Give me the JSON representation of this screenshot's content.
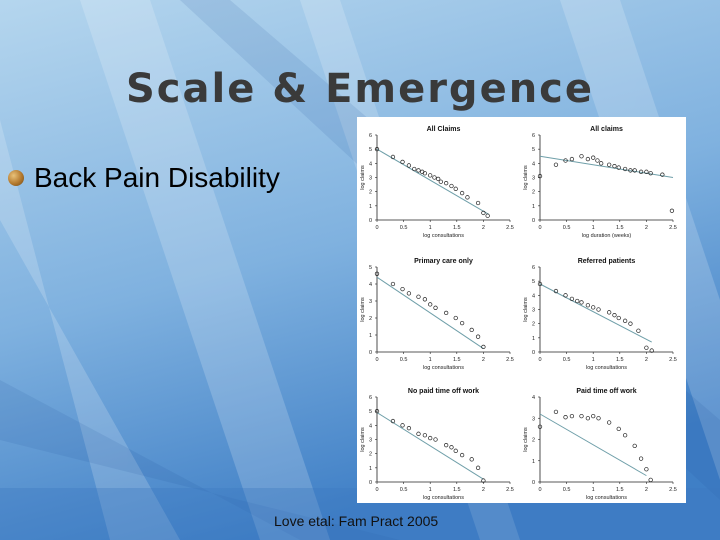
{
  "slide": {
    "title": "Scale & Emergence",
    "bullet": "Back Pain Disability",
    "citation": "Love etal:  Fam Pract  2005"
  },
  "colors": {
    "title": "#3a3a3a",
    "fit_line": "#6f9fa9",
    "background_top": "#a9cde8",
    "background_bottom": "#4a85c8"
  },
  "chart_data": [
    {
      "type": "scatter",
      "title": "All Claims",
      "xlabel": "log consultations",
      "ylabel": "log claims",
      "xlim": [
        0,
        2.5
      ],
      "ylim": [
        0,
        6
      ],
      "xticks": [
        "0",
        "0.5",
        "1",
        "1.5",
        "2",
        "2.5"
      ],
      "yticks": [
        "0",
        "1",
        "2",
        "3",
        "4",
        "5",
        "6"
      ],
      "x": [
        0,
        0.3,
        0.48,
        0.6,
        0.7,
        0.78,
        0.85,
        0.9,
        1.0,
        1.08,
        1.15,
        1.2,
        1.3,
        1.4,
        1.48,
        1.6,
        1.7,
        1.9,
        2.0,
        2.08
      ],
      "y": [
        5.0,
        4.45,
        4.1,
        3.85,
        3.6,
        3.5,
        3.4,
        3.3,
        3.15,
        3.0,
        2.9,
        2.7,
        2.6,
        2.4,
        2.2,
        1.9,
        1.6,
        1.2,
        0.5,
        0.3
      ],
      "fit": [
        [
          0,
          5.0
        ],
        [
          2.1,
          0.4
        ]
      ]
    },
    {
      "type": "scatter",
      "title": "All claims",
      "xlabel": "log duration (weeks)",
      "ylabel": "log claims",
      "xlim": [
        0,
        2.5
      ],
      "ylim": [
        0,
        6
      ],
      "xticks": [
        "0",
        "0.5",
        "1",
        "1.5",
        "2",
        "2.5"
      ],
      "yticks": [
        "0",
        "1",
        "2",
        "3",
        "4",
        "5",
        "6"
      ],
      "x": [
        0,
        0.3,
        0.48,
        0.6,
        0.78,
        0.9,
        1.0,
        1.08,
        1.15,
        1.3,
        1.4,
        1.48,
        1.6,
        1.7,
        1.78,
        1.9,
        2.0,
        2.08,
        2.3,
        2.48
      ],
      "y": [
        3.1,
        3.9,
        4.2,
        4.3,
        4.5,
        4.3,
        4.4,
        4.2,
        4.0,
        3.9,
        3.8,
        3.7,
        3.6,
        3.5,
        3.5,
        3.4,
        3.4,
        3.3,
        3.2,
        0.65
      ],
      "fit": [
        [
          0,
          4.5
        ],
        [
          2.5,
          3.0
        ]
      ]
    },
    {
      "type": "scatter",
      "title": "Primary care only",
      "xlabel": "log consultations",
      "ylabel": "log claims",
      "xlim": [
        0,
        2.5
      ],
      "ylim": [
        0,
        5
      ],
      "xticks": [
        "0",
        "0.5",
        "1",
        "1.5",
        "2",
        "2.5"
      ],
      "yticks": [
        "0",
        "1",
        "2",
        "3",
        "4",
        "5"
      ],
      "x": [
        0,
        0.3,
        0.48,
        0.6,
        0.78,
        0.9,
        1.0,
        1.1,
        1.3,
        1.48,
        1.6,
        1.78,
        1.9,
        2.0
      ],
      "y": [
        4.6,
        4.0,
        3.7,
        3.45,
        3.25,
        3.1,
        2.8,
        2.6,
        2.3,
        2.0,
        1.7,
        1.3,
        0.9,
        0.3
      ],
      "fit": [
        [
          0,
          4.4
        ],
        [
          2.0,
          0.2
        ]
      ]
    },
    {
      "type": "scatter",
      "title": "Referred patients",
      "xlabel": "log consultations",
      "ylabel": "log claims",
      "xlim": [
        0,
        2.5
      ],
      "ylim": [
        0,
        6
      ],
      "xticks": [
        "0",
        "0.5",
        "1",
        "1.5",
        "2",
        "2.5"
      ],
      "yticks": [
        "0",
        "1",
        "2",
        "3",
        "4",
        "5",
        "6"
      ],
      "x": [
        0,
        0.3,
        0.48,
        0.6,
        0.7,
        0.78,
        0.9,
        1.0,
        1.1,
        1.3,
        1.4,
        1.48,
        1.6,
        1.7,
        1.85,
        2.0,
        2.1
      ],
      "y": [
        4.8,
        4.3,
        4.0,
        3.75,
        3.6,
        3.5,
        3.3,
        3.15,
        3.0,
        2.8,
        2.6,
        2.4,
        2.2,
        2.0,
        1.5,
        0.3,
        0.1
      ],
      "fit": [
        [
          0,
          4.8
        ],
        [
          2.1,
          0.7
        ]
      ]
    },
    {
      "type": "scatter",
      "title": "No paid time off work",
      "xlabel": "log consultations",
      "ylabel": "log claims",
      "xlim": [
        0,
        2.5
      ],
      "ylim": [
        0,
        6
      ],
      "xticks": [
        "0",
        "0.5",
        "1",
        "1.5",
        "2",
        "2.5"
      ],
      "yticks": [
        "0",
        "1",
        "2",
        "3",
        "4",
        "5",
        "6"
      ],
      "x": [
        0,
        0.3,
        0.48,
        0.6,
        0.78,
        0.9,
        1.0,
        1.1,
        1.3,
        1.4,
        1.48,
        1.6,
        1.78,
        1.9,
        2.0
      ],
      "y": [
        5.0,
        4.3,
        4.0,
        3.8,
        3.4,
        3.3,
        3.1,
        3.0,
        2.6,
        2.45,
        2.2,
        1.9,
        1.6,
        1.0,
        0.1
      ],
      "fit": [
        [
          0,
          4.9
        ],
        [
          2.0,
          0.2
        ]
      ]
    },
    {
      "type": "scatter",
      "title": "Paid time off work",
      "xlabel": "log consultations",
      "ylabel": "log claims",
      "xlim": [
        0,
        2.5
      ],
      "ylim": [
        0,
        4
      ],
      "xticks": [
        "0",
        "0.5",
        "1",
        "1.5",
        "2",
        "2.5"
      ],
      "yticks": [
        "0",
        "1",
        "2",
        "3",
        "4"
      ],
      "x": [
        0,
        0.3,
        0.48,
        0.6,
        0.78,
        0.9,
        1.0,
        1.1,
        1.3,
        1.48,
        1.6,
        1.78,
        1.9,
        2.0,
        2.08
      ],
      "y": [
        2.6,
        3.3,
        3.05,
        3.1,
        3.1,
        3.0,
        3.1,
        3.0,
        2.8,
        2.5,
        2.2,
        1.7,
        1.1,
        0.6,
        0.1
      ],
      "fit": [
        [
          0,
          3.2
        ],
        [
          2.0,
          0.3
        ]
      ]
    }
  ]
}
